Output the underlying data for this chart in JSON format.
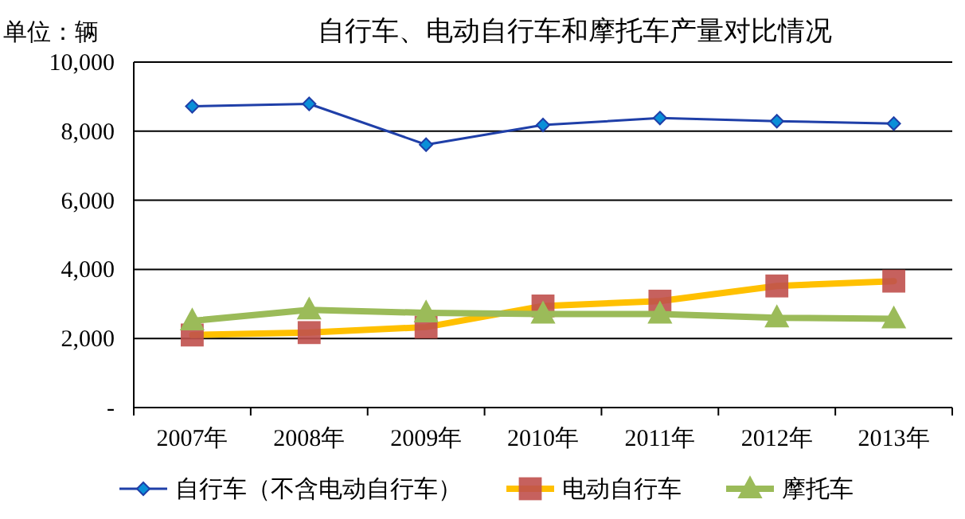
{
  "chart_data": {
    "type": "line",
    "title": "自行车、电动自行车和摩托车产量对比情况",
    "ylabel": "单位：辆",
    "categories": [
      "2007年",
      "2008年",
      "2009年",
      "2010年",
      "2011年",
      "2012年",
      "2013年"
    ],
    "series": [
      {
        "name": "自行车（不含电动自行车）",
        "color": "#1f3fa8",
        "marker": "diamond",
        "values": [
          8720,
          8790,
          7610,
          8180,
          8380,
          8290,
          8220
        ]
      },
      {
        "name": "电动自行车",
        "color": "#ffc000",
        "marker": "square",
        "values": [
          2100,
          2170,
          2330,
          2940,
          3080,
          3520,
          3660
        ]
      },
      {
        "name": "摩托车",
        "color": "#9bbb59",
        "marker": "triangle",
        "values": [
          2510,
          2830,
          2740,
          2710,
          2710,
          2600,
          2570
        ]
      }
    ],
    "ylim": [
      0,
      10000
    ],
    "yticks": [
      {
        "value": 0,
        "label": "-"
      },
      {
        "value": 2000,
        "label": "2,000"
      },
      {
        "value": 4000,
        "label": "4,000"
      },
      {
        "value": 6000,
        "label": "6,000"
      },
      {
        "value": 8000,
        "label": "8,000"
      },
      {
        "value": 10000,
        "label": "10,000"
      }
    ],
    "grid": "y",
    "legend": "bottom"
  }
}
